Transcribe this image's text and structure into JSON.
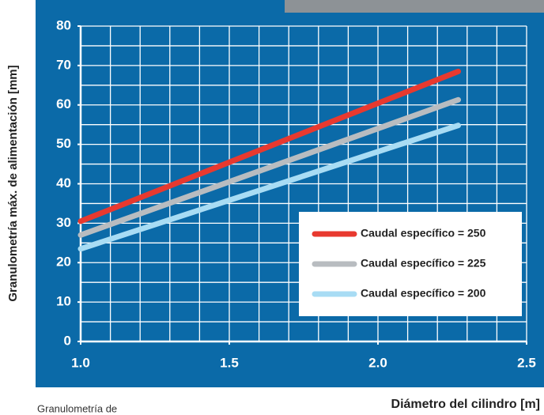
{
  "chart_data": {
    "type": "line",
    "x_label": "Diámetro del cilindro [m]",
    "y_label": "Granulometría máx. de alimentación [mm]",
    "caption": "Granulometría de",
    "xlim": [
      1.0,
      2.5
    ],
    "xticks": [
      {
        "value": 1.0,
        "label": "1.0"
      },
      {
        "value": 1.5,
        "label": "1.5"
      },
      {
        "value": 2.0,
        "label": "2.0"
      },
      {
        "value": 2.5,
        "label": "2.5"
      }
    ],
    "xgrid": [
      1.0,
      1.1,
      1.2,
      1.3,
      1.4,
      1.5,
      1.6,
      1.7,
      1.8,
      1.9,
      2.0,
      2.1,
      2.2,
      2.3,
      2.4,
      2.5
    ],
    "ylim": [
      0,
      80
    ],
    "yticks": [
      0,
      10,
      20,
      30,
      40,
      50,
      60,
      70,
      80
    ],
    "ygrid": [
      0,
      5,
      10,
      15,
      20,
      25,
      30,
      35,
      40,
      45,
      50,
      55,
      60,
      65,
      70,
      75,
      80
    ],
    "grid": true,
    "legend": "lower right",
    "x": [
      1.0,
      2.27
    ],
    "series": [
      {
        "name": "Caudal específico = 250",
        "color": "#e8392f",
        "values": [
          30.5,
          68.5
        ]
      },
      {
        "name": "Caudal específico = 225",
        "color": "#b8bcc0",
        "values": [
          27,
          61.3
        ]
      },
      {
        "name": "Caudal específico = 200",
        "color": "#a8dcf4",
        "values": [
          23.5,
          54.8
        ]
      }
    ]
  }
}
